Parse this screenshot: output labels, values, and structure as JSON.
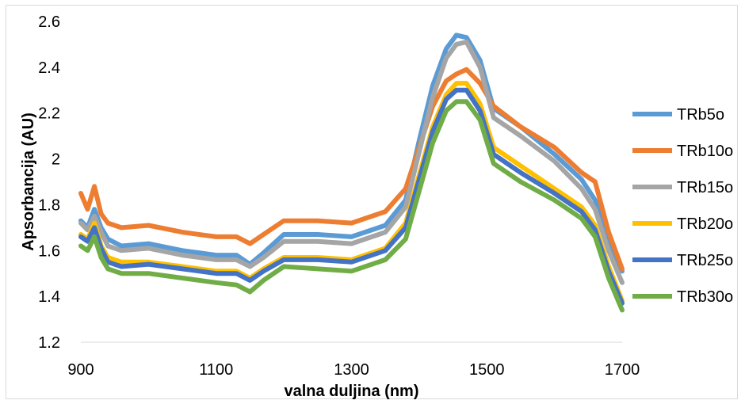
{
  "chart_data": {
    "type": "line",
    "title": "",
    "xlabel": "valna duljina (nm)",
    "ylabel": "Apsorbancija (AU)",
    "xlim": [
      900,
      1700
    ],
    "ylim": [
      1.2,
      2.6
    ],
    "xticks": [
      "900",
      "1100",
      "1300",
      "1500",
      "1700"
    ],
    "yticks": [
      "1.2",
      "1.4",
      "1.6",
      "1.8",
      "2",
      "2.2",
      "2.4",
      "2.6"
    ],
    "grid": false,
    "legend_position": "right",
    "x": [
      900,
      910,
      920,
      930,
      940,
      960,
      1000,
      1050,
      1100,
      1130,
      1150,
      1170,
      1200,
      1250,
      1300,
      1350,
      1380,
      1400,
      1420,
      1440,
      1455,
      1470,
      1490,
      1510,
      1550,
      1600,
      1640,
      1660,
      1680,
      1700
    ],
    "series": [
      {
        "name": "TRb5o",
        "color": "#5b9bd5",
        "values": [
          1.73,
          1.7,
          1.78,
          1.7,
          1.65,
          1.62,
          1.63,
          1.6,
          1.58,
          1.58,
          1.54,
          1.59,
          1.67,
          1.67,
          1.66,
          1.71,
          1.82,
          2.08,
          2.32,
          2.48,
          2.54,
          2.53,
          2.43,
          2.22,
          2.14,
          2.02,
          1.91,
          1.82,
          1.64,
          1.51
        ]
      },
      {
        "name": "TRb10o",
        "color": "#ed7d31",
        "values": [
          1.85,
          1.78,
          1.88,
          1.76,
          1.72,
          1.7,
          1.71,
          1.68,
          1.66,
          1.66,
          1.63,
          1.67,
          1.73,
          1.73,
          1.72,
          1.77,
          1.87,
          2.05,
          2.23,
          2.34,
          2.37,
          2.39,
          2.33,
          2.23,
          2.14,
          2.05,
          1.94,
          1.9,
          1.68,
          1.52
        ]
      },
      {
        "name": "TRb15o",
        "color": "#a5a5a5",
        "values": [
          1.72,
          1.69,
          1.75,
          1.68,
          1.62,
          1.6,
          1.61,
          1.58,
          1.56,
          1.56,
          1.53,
          1.57,
          1.64,
          1.64,
          1.63,
          1.68,
          1.79,
          2.03,
          2.27,
          2.44,
          2.5,
          2.51,
          2.4,
          2.18,
          2.1,
          1.99,
          1.87,
          1.78,
          1.6,
          1.46
        ]
      },
      {
        "name": "TRb20o",
        "color": "#ffc000",
        "values": [
          1.67,
          1.65,
          1.72,
          1.62,
          1.57,
          1.55,
          1.55,
          1.53,
          1.51,
          1.51,
          1.48,
          1.52,
          1.57,
          1.57,
          1.56,
          1.61,
          1.72,
          1.93,
          2.14,
          2.28,
          2.33,
          2.33,
          2.24,
          2.05,
          1.97,
          1.87,
          1.79,
          1.71,
          1.53,
          1.38
        ]
      },
      {
        "name": "TRb25o",
        "color": "#4472c4",
        "values": [
          1.66,
          1.64,
          1.7,
          1.61,
          1.55,
          1.53,
          1.54,
          1.52,
          1.5,
          1.5,
          1.47,
          1.51,
          1.56,
          1.56,
          1.55,
          1.6,
          1.7,
          1.91,
          2.12,
          2.26,
          2.3,
          2.3,
          2.21,
          2.02,
          1.94,
          1.85,
          1.77,
          1.69,
          1.51,
          1.37
        ]
      },
      {
        "name": "TRb30o",
        "color": "#70ad47",
        "values": [
          1.62,
          1.6,
          1.66,
          1.57,
          1.52,
          1.5,
          1.5,
          1.48,
          1.46,
          1.45,
          1.42,
          1.47,
          1.53,
          1.52,
          1.51,
          1.56,
          1.65,
          1.86,
          2.07,
          2.21,
          2.25,
          2.25,
          2.17,
          1.98,
          1.9,
          1.82,
          1.74,
          1.66,
          1.48,
          1.34
        ]
      }
    ]
  }
}
